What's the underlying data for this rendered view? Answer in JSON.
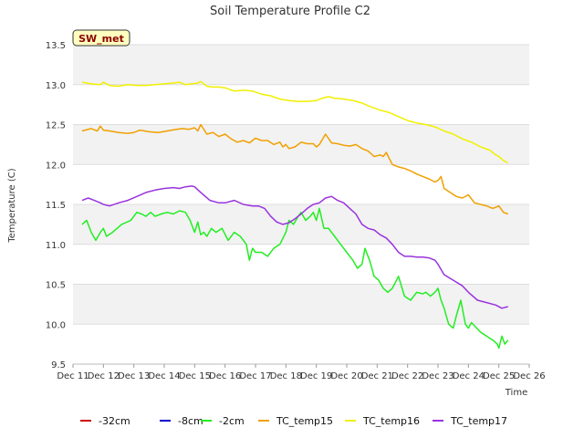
{
  "chart_data": {
    "type": "line",
    "title": "Soil Temperature Profile C2",
    "xlabel": "Time",
    "ylabel": "Temperature (C)",
    "badge": "SW_met",
    "x_ticks": [
      "Dec 11",
      "Dec 12",
      "Dec 13",
      "Dec 14",
      "Dec 15",
      "Dec 16",
      "Dec 17",
      "Dec 18",
      "Dec 19",
      "Dec 20",
      "Dec 21",
      "Dec 22",
      "Dec 23",
      "Dec 24",
      "Dec 25",
      "Dec 26"
    ],
    "xlim": [
      0,
      15
    ],
    "ylim": [
      9.5,
      13.5
    ],
    "y_ticks": [
      9.5,
      10.0,
      10.5,
      11.0,
      11.5,
      12.0,
      12.5,
      13.0,
      13.5
    ],
    "y_tick_labels": [
      "9.5",
      "10.0",
      "10.5",
      "11.0",
      "11.5",
      "12.0",
      "12.5",
      "13.0",
      "13.5"
    ],
    "legend_position": "bottom",
    "series": [
      {
        "name": "-32cm",
        "color": "#cc0000",
        "x": [],
        "y": []
      },
      {
        "name": "-8cm",
        "color": "#0000cc",
        "x": [],
        "y": []
      },
      {
        "name": "-2cm",
        "color": "#22ee22",
        "x": [
          0.3,
          0.45,
          0.6,
          0.75,
          0.9,
          1.0,
          1.1,
          1.3,
          1.6,
          1.9,
          2.1,
          2.25,
          2.4,
          2.55,
          2.7,
          2.9,
          3.1,
          3.3,
          3.5,
          3.7,
          3.85,
          4.0,
          4.1,
          4.2,
          4.3,
          4.4,
          4.55,
          4.7,
          4.9,
          5.1,
          5.3,
          5.5,
          5.7,
          5.8,
          5.9,
          6.0,
          6.2,
          6.4,
          6.6,
          6.8,
          7.0,
          7.1,
          7.25,
          7.4,
          7.5,
          7.65,
          7.8,
          7.9,
          8.0,
          8.1,
          8.25,
          8.4,
          8.5,
          8.6,
          8.8,
          9.0,
          9.2,
          9.35,
          9.5,
          9.6,
          9.75,
          9.9,
          10.05,
          10.2,
          10.35,
          10.5,
          10.7,
          10.9,
          11.1,
          11.3,
          11.5,
          11.6,
          11.75,
          11.9,
          12.0,
          12.1,
          12.2,
          12.35,
          12.5,
          12.6,
          12.75,
          12.9,
          13.0,
          13.1,
          13.2,
          13.4,
          13.6,
          13.8,
          13.95,
          14.0,
          14.1,
          14.2,
          14.3
        ],
        "y": [
          11.25,
          11.3,
          11.15,
          11.05,
          11.15,
          11.2,
          11.1,
          11.15,
          11.25,
          11.3,
          11.4,
          11.38,
          11.35,
          11.4,
          11.35,
          11.38,
          11.4,
          11.38,
          11.42,
          11.4,
          11.3,
          11.15,
          11.28,
          11.12,
          11.15,
          11.1,
          11.2,
          11.15,
          11.2,
          11.05,
          11.15,
          11.1,
          11.0,
          10.8,
          10.95,
          10.9,
          10.9,
          10.85,
          10.95,
          11.0,
          11.15,
          11.3,
          11.25,
          11.35,
          11.4,
          11.3,
          11.35,
          11.4,
          11.3,
          11.45,
          11.2,
          11.2,
          11.15,
          11.1,
          11.0,
          10.9,
          10.8,
          10.7,
          10.75,
          10.95,
          10.8,
          10.6,
          10.55,
          10.45,
          10.4,
          10.45,
          10.6,
          10.35,
          10.3,
          10.4,
          10.38,
          10.4,
          10.35,
          10.4,
          10.45,
          10.3,
          10.2,
          10.0,
          9.95,
          10.1,
          10.3,
          10.0,
          9.95,
          10.02,
          9.98,
          9.9,
          9.85,
          9.8,
          9.75,
          9.7,
          9.85,
          9.75,
          9.8
        ]
      },
      {
        "name": "TC_temp15",
        "color": "#f0a000",
        "x": [
          0.3,
          0.6,
          0.8,
          0.9,
          1.0,
          1.2,
          1.5,
          1.8,
          2.0,
          2.2,
          2.5,
          2.8,
          3.1,
          3.4,
          3.6,
          3.8,
          4.0,
          4.1,
          4.2,
          4.4,
          4.6,
          4.8,
          5.0,
          5.2,
          5.4,
          5.6,
          5.8,
          6.0,
          6.2,
          6.4,
          6.6,
          6.8,
          6.9,
          7.0,
          7.1,
          7.3,
          7.5,
          7.7,
          7.9,
          8.0,
          8.1,
          8.3,
          8.5,
          8.7,
          8.9,
          9.1,
          9.3,
          9.5,
          9.7,
          9.9,
          10.1,
          10.2,
          10.3,
          10.5,
          10.7,
          10.9,
          11.1,
          11.3,
          11.5,
          11.7,
          11.9,
          12.0,
          12.1,
          12.2,
          12.4,
          12.6,
          12.8,
          13.0,
          13.2,
          13.4,
          13.6,
          13.8,
          14.0,
          14.15,
          14.3
        ],
        "y": [
          12.42,
          12.45,
          12.42,
          12.48,
          12.43,
          12.42,
          12.4,
          12.39,
          12.4,
          12.43,
          12.41,
          12.4,
          12.42,
          12.44,
          12.45,
          12.44,
          12.46,
          12.42,
          12.5,
          12.38,
          12.4,
          12.35,
          12.38,
          12.32,
          12.28,
          12.3,
          12.27,
          12.33,
          12.3,
          12.3,
          12.25,
          12.28,
          12.22,
          12.25,
          12.2,
          12.22,
          12.28,
          12.26,
          12.26,
          12.22,
          12.25,
          12.38,
          12.27,
          12.26,
          12.24,
          12.23,
          12.25,
          12.2,
          12.17,
          12.1,
          12.12,
          12.1,
          12.15,
          12.0,
          11.97,
          11.95,
          11.92,
          11.88,
          11.85,
          11.82,
          11.78,
          11.8,
          11.85,
          11.7,
          11.65,
          11.6,
          11.58,
          11.62,
          11.52,
          11.5,
          11.48,
          11.45,
          11.48,
          11.4,
          11.38
        ]
      },
      {
        "name": "TC_temp16",
        "color": "#f0f000",
        "x": [
          0.3,
          0.6,
          0.9,
          1.0,
          1.2,
          1.5,
          1.8,
          2.1,
          2.4,
          2.7,
          3.0,
          3.3,
          3.5,
          3.7,
          3.9,
          4.1,
          4.2,
          4.4,
          4.6,
          4.8,
          5.0,
          5.3,
          5.6,
          5.9,
          6.2,
          6.5,
          6.8,
          7.1,
          7.4,
          7.7,
          8.0,
          8.2,
          8.4,
          8.6,
          8.9,
          9.2,
          9.5,
          9.8,
          10.1,
          10.4,
          10.7,
          11.0,
          11.3,
          11.6,
          11.9,
          12.2,
          12.5,
          12.8,
          13.1,
          13.4,
          13.7,
          13.9,
          14.0,
          14.15,
          14.3
        ],
        "y": [
          13.03,
          13.01,
          13.0,
          13.03,
          12.99,
          12.98,
          13.0,
          12.99,
          12.99,
          13.0,
          13.01,
          13.02,
          13.03,
          13.0,
          13.01,
          13.02,
          13.04,
          12.98,
          12.97,
          12.97,
          12.96,
          12.92,
          12.93,
          12.92,
          12.88,
          12.86,
          12.82,
          12.8,
          12.79,
          12.79,
          12.8,
          12.83,
          12.85,
          12.83,
          12.82,
          12.8,
          12.77,
          12.72,
          12.68,
          12.65,
          12.6,
          12.55,
          12.52,
          12.5,
          12.47,
          12.42,
          12.38,
          12.32,
          12.28,
          12.22,
          12.18,
          12.12,
          12.1,
          12.05,
          12.02
        ]
      },
      {
        "name": "TC_temp17",
        "color": "#9933dd",
        "x": [
          0.3,
          0.5,
          0.7,
          0.9,
          1.0,
          1.2,
          1.5,
          1.8,
          2.1,
          2.4,
          2.7,
          3.0,
          3.3,
          3.5,
          3.7,
          3.9,
          4.0,
          4.2,
          4.5,
          4.8,
          5.0,
          5.3,
          5.6,
          5.9,
          6.1,
          6.3,
          6.5,
          6.7,
          6.9,
          7.1,
          7.3,
          7.5,
          7.7,
          7.9,
          8.1,
          8.3,
          8.5,
          8.7,
          8.9,
          9.1,
          9.3,
          9.5,
          9.7,
          9.9,
          10.1,
          10.3,
          10.5,
          10.7,
          10.9,
          11.1,
          11.3,
          11.5,
          11.7,
          11.9,
          12.0,
          12.2,
          12.5,
          12.8,
          13.0,
          13.3,
          13.6,
          13.9,
          14.1,
          14.3
        ],
        "y": [
          11.55,
          11.58,
          11.55,
          11.52,
          11.5,
          11.48,
          11.52,
          11.55,
          11.6,
          11.65,
          11.68,
          11.7,
          11.71,
          11.7,
          11.72,
          11.73,
          11.72,
          11.65,
          11.55,
          11.52,
          11.52,
          11.55,
          11.5,
          11.48,
          11.48,
          11.45,
          11.35,
          11.28,
          11.25,
          11.27,
          11.32,
          11.38,
          11.45,
          11.5,
          11.52,
          11.58,
          11.6,
          11.55,
          11.52,
          11.45,
          11.38,
          11.25,
          11.2,
          11.18,
          11.12,
          11.08,
          11.0,
          10.9,
          10.85,
          10.85,
          10.84,
          10.84,
          10.83,
          10.8,
          10.75,
          10.62,
          10.55,
          10.48,
          10.4,
          10.3,
          10.27,
          10.24,
          10.2,
          10.22
        ]
      }
    ]
  }
}
